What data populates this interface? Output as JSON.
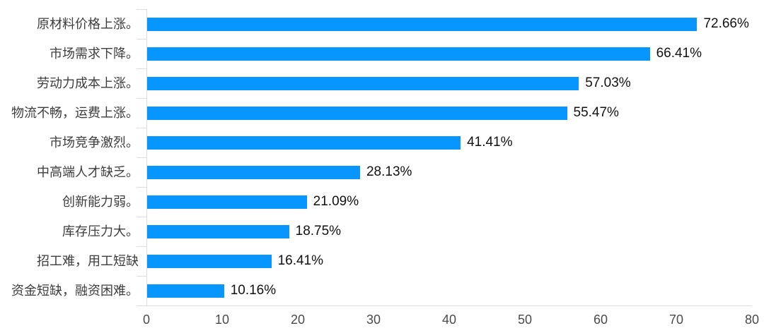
{
  "chart_data": {
    "type": "bar",
    "orientation": "horizontal",
    "title": "",
    "xlabel": "",
    "ylabel": "",
    "grid": false,
    "legend": "none",
    "categories": [
      "原材料价格上涨。",
      "市场需求下降。",
      "劳动力成本上涨。",
      "物流不畅，运费上涨。",
      "市场竞争激烈。",
      "中高端人才缺乏。",
      "创新能力弱。",
      "库存压力大。",
      "招工难，用工短缺",
      "资金短缺，融资困难。"
    ],
    "values": [
      72.66,
      66.41,
      57.03,
      55.47,
      41.41,
      28.13,
      21.09,
      18.75,
      16.41,
      10.16
    ],
    "value_labels": [
      "72.66%",
      "66.41%",
      "57.03%",
      "55.47%",
      "41.41%",
      "28.13%",
      "21.09%",
      "18.75%",
      "16.41%",
      "10.16%"
    ],
    "x_ticks": [
      "0",
      "10",
      "20",
      "30",
      "40",
      "50",
      "60",
      "70",
      "80"
    ],
    "x_tick_values": [
      0,
      10,
      20,
      30,
      40,
      50,
      60,
      70,
      80
    ],
    "xlim": [
      0,
      80
    ],
    "colors": {
      "bar": "#0696fd",
      "axis": "#d9dce8",
      "category_label": "#3d3d3d",
      "value_label": "#111111",
      "tick_label": "#4a4a4a",
      "background": "#ffffff"
    }
  }
}
